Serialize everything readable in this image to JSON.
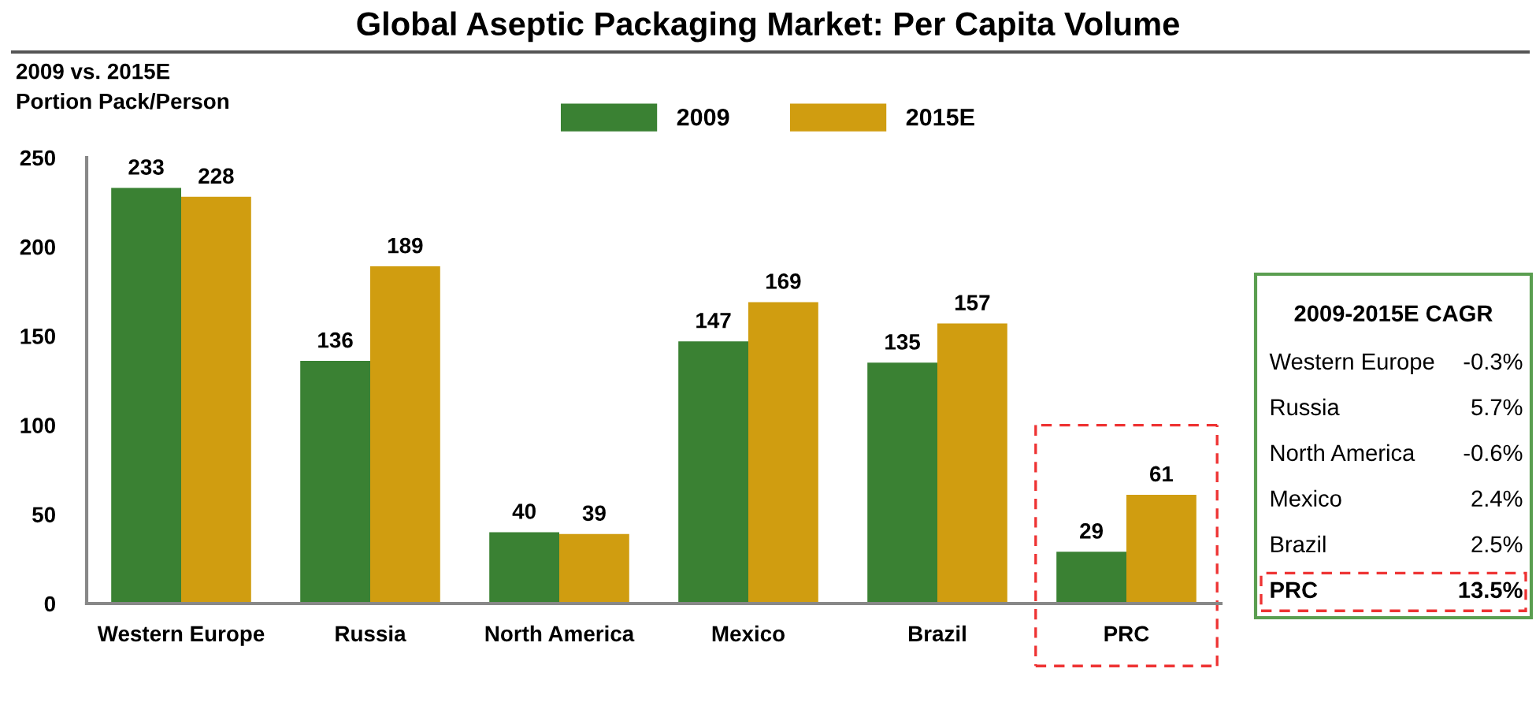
{
  "chart_data": [
    {
      "type": "bar",
      "title": "Global Aseptic Packaging Market: Per Capita Volume",
      "ylabel": "2009 vs. 2015E\nPortion Pack/Person",
      "categories": [
        "Western Europe",
        "Russia",
        "North America",
        "Mexico",
        "Brazil",
        "PRC"
      ],
      "series": [
        {
          "name": "2009",
          "color": "#3a8133",
          "values": [
            233,
            136,
            40,
            147,
            135,
            29
          ]
        },
        {
          "name": "2015E",
          "color": "#d09d10",
          "values": [
            228,
            189,
            39,
            169,
            157,
            61
          ]
        }
      ],
      "ylim": [
        0,
        250
      ],
      "yticks": [
        0,
        50,
        100,
        150,
        200,
        250
      ],
      "grid": false,
      "legend": "top",
      "data_labels": true
    },
    {
      "type": "other",
      "title": "2009-2015E CAGR",
      "annotations": [
        "Western Europe",
        "-0.3%",
        "Russia",
        "5.7%",
        "North America",
        "-0.6%",
        "Mexico",
        "2.4%",
        "Brazil",
        "2.5%",
        "PRC",
        "13.5%"
      ]
    }
  ]
}
